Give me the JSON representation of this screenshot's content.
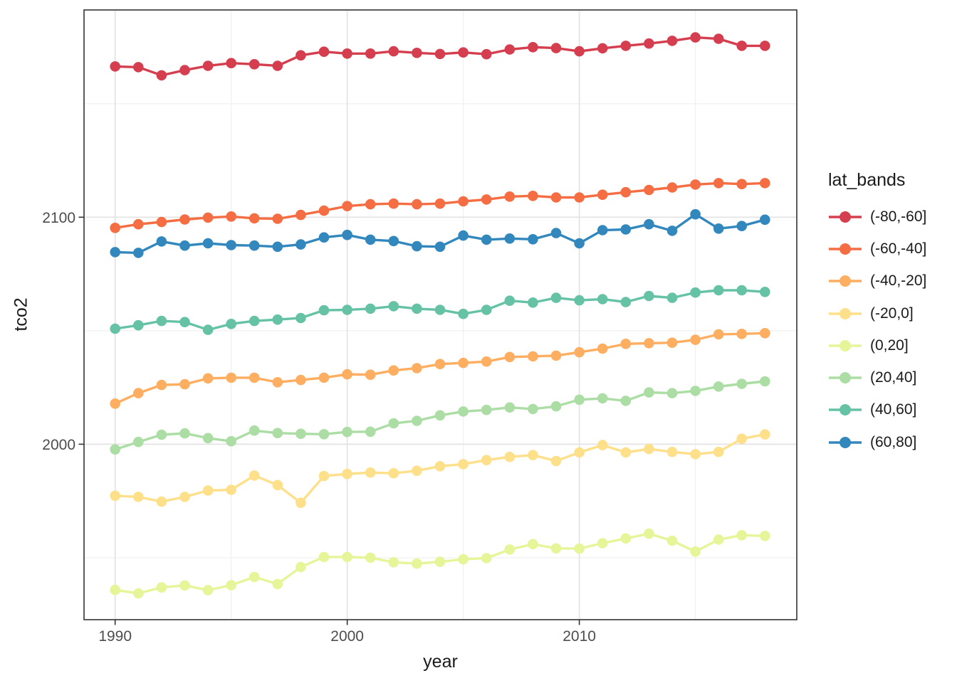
{
  "chart_data": {
    "type": "line",
    "title": "",
    "xlabel": "year",
    "ylabel": "tco2",
    "legend_title": "lat_bands",
    "legend_position": "right",
    "x": [
      1990,
      1991,
      1992,
      1993,
      1994,
      1995,
      1996,
      1997,
      1998,
      1999,
      2000,
      2001,
      2002,
      2003,
      2004,
      2005,
      2006,
      2007,
      2008,
      2009,
      2010,
      2011,
      2012,
      2013,
      2014,
      2015,
      2016,
      2017,
      2018
    ],
    "axes": {
      "xlim": [
        1988.66,
        2019.37
      ],
      "ylim": [
        1922.7,
        2191.3
      ],
      "x_major_ticks": [
        1990,
        2000,
        2010
      ],
      "x_minor_ticks": [
        1995,
        2005,
        2015
      ],
      "y_major_ticks": [
        2000,
        2100
      ],
      "y_minor_ticks": [
        1950,
        2050,
        2150
      ],
      "grid": "major+minor"
    },
    "style": {
      "background": "#FFFFFF",
      "panel_border": "#333333",
      "grid_major": "#E3E3E3",
      "grid_minor": "#EFEFEF",
      "tick_color": "#333333",
      "tick_label_color": "#4D4D4D",
      "title_color": "#1A1A1A",
      "marker": "circle",
      "marker_radius": 7.3,
      "line_width": 3.4
    },
    "series": [
      {
        "name": "(-80,-60]",
        "color": "#D53E4F",
        "values": [
          2166.4,
          2166.1,
          2162.5,
          2164.8,
          2166.7,
          2167.9,
          2167.4,
          2166.7,
          2171.3,
          2172.9,
          2172.1,
          2172.1,
          2173.1,
          2172.4,
          2171.9,
          2172.6,
          2171.8,
          2173.9,
          2174.9,
          2174.5,
          2173.1,
          2174.4,
          2175.5,
          2176.5,
          2177.7,
          2179.2,
          2178.6,
          2175.5,
          2175.5
        ]
      },
      {
        "name": "(-60,-40]",
        "color": "#F46D43",
        "values": [
          2095.3,
          2096.9,
          2097.9,
          2099.0,
          2099.8,
          2100.3,
          2099.5,
          2099.3,
          2101.0,
          2102.9,
          2104.9,
          2105.7,
          2106.0,
          2105.7,
          2106.0,
          2107.0,
          2107.8,
          2109.1,
          2109.4,
          2108.7,
          2108.7,
          2109.9,
          2111.0,
          2112.0,
          2113.1,
          2114.4,
          2115.0,
          2114.6,
          2115.0
        ]
      },
      {
        "name": "(-40,-20]",
        "color": "#FDAE61",
        "values": [
          2017.9,
          2022.5,
          2026.1,
          2026.4,
          2029.0,
          2029.3,
          2029.3,
          2027.3,
          2028.3,
          2029.3,
          2030.8,
          2030.6,
          2032.5,
          2033.5,
          2035.3,
          2035.8,
          2036.4,
          2038.4,
          2038.7,
          2039.0,
          2040.5,
          2042.1,
          2044.2,
          2044.5,
          2044.7,
          2046.0,
          2048.4,
          2048.6,
          2048.9
        ]
      },
      {
        "name": "(-20,0]",
        "color": "#FEE08B",
        "values": [
          1977.3,
          1976.8,
          1974.7,
          1976.8,
          1979.6,
          1979.9,
          1986.2,
          1982.0,
          1974.2,
          1986.0,
          1986.9,
          1987.5,
          1987.2,
          1988.3,
          1990.3,
          1991.2,
          1993.0,
          1994.4,
          1995.2,
          1992.6,
          1996.4,
          1999.6,
          1996.4,
          1997.9,
          1996.6,
          1995.6,
          1996.6,
          2002.4,
          2004.3
        ]
      },
      {
        "name": "(0,20]",
        "color": "#E6F598",
        "values": [
          1935.8,
          1934.3,
          1936.9,
          1937.8,
          1935.7,
          1937.9,
          1941.5,
          1938.4,
          1945.9,
          1950.3,
          1950.3,
          1950.0,
          1948.0,
          1947.4,
          1948.2,
          1949.3,
          1949.8,
          1953.6,
          1956.0,
          1954.1,
          1954.0,
          1956.4,
          1958.5,
          1960.6,
          1957.5,
          1952.7,
          1958.0,
          1959.9,
          1959.6
        ]
      },
      {
        "name": "(20,40]",
        "color": "#ABDDA4",
        "values": [
          1997.7,
          2001.0,
          2004.2,
          2004.8,
          2002.7,
          2001.3,
          2006.0,
          2004.9,
          2004.6,
          2004.4,
          2005.4,
          2005.5,
          2009.2,
          2010.3,
          2012.7,
          2014.4,
          2015.1,
          2016.2,
          2015.5,
          2016.7,
          2019.6,
          2020.2,
          2019.1,
          2022.8,
          2022.5,
          2023.5,
          2025.4,
          2026.6,
          2027.7
        ]
      },
      {
        "name": "(40,60]",
        "color": "#66C2A5",
        "values": [
          2050.9,
          2052.4,
          2054.3,
          2053.8,
          2050.4,
          2053.0,
          2054.3,
          2054.9,
          2055.6,
          2059.0,
          2059.2,
          2059.7,
          2060.8,
          2059.7,
          2059.2,
          2057.4,
          2059.2,
          2063.2,
          2062.4,
          2064.5,
          2063.4,
          2063.9,
          2062.6,
          2065.3,
          2064.5,
          2066.8,
          2067.8,
          2067.8,
          2067.1
        ]
      },
      {
        "name": "(60,80]",
        "color": "#3288BD",
        "values": [
          2084.6,
          2084.3,
          2089.3,
          2087.5,
          2088.5,
          2087.7,
          2087.5,
          2087.0,
          2088.0,
          2091.1,
          2092.2,
          2090.1,
          2089.5,
          2087.2,
          2087.0,
          2091.9,
          2090.1,
          2090.6,
          2090.3,
          2093.0,
          2088.5,
          2094.3,
          2094.6,
          2096.9,
          2094.0,
          2101.3,
          2095.0,
          2096.1,
          2098.9
        ]
      }
    ]
  }
}
